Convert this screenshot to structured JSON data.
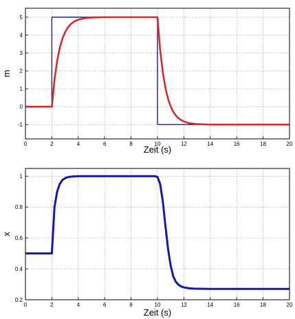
{
  "chart_data": [
    {
      "type": "line",
      "xlabel": "Zeit (s)",
      "ylabel": "m",
      "xlim": [
        0,
        20
      ],
      "ylim": [
        -1.8,
        5.5
      ],
      "xticks": [
        "0",
        "2",
        "4",
        "6",
        "8",
        "10",
        "12",
        "14",
        "16",
        "18",
        "20"
      ],
      "yticks": [
        "-1",
        "0",
        "1",
        "2",
        "3",
        "4",
        "5"
      ],
      "grid": true,
      "series": [
        {
          "color": "#1a1aa6",
          "x": [
            0,
            2,
            2,
            10,
            10,
            20
          ],
          "y": [
            0,
            0,
            5,
            5,
            -1,
            -1
          ]
        },
        {
          "color": "#d42a2a",
          "x": [
            0,
            2,
            2.2,
            2.4,
            2.6,
            2.8,
            3,
            3.2,
            3.4,
            3.6,
            3.8,
            4,
            4.4,
            4.8,
            5.2,
            6,
            7,
            8,
            9,
            10,
            10.2,
            10.4,
            10.6,
            10.8,
            11,
            11.2,
            11.4,
            11.6,
            11.8,
            12,
            12.4,
            12.8,
            13.2,
            14,
            16,
            18,
            20
          ],
          "y": [
            0,
            0,
            1.5,
            2.55,
            3.29,
            3.8,
            4.16,
            4.41,
            4.59,
            4.71,
            4.8,
            4.86,
            4.93,
            4.97,
            4.99,
            5,
            5,
            5,
            5,
            5,
            3.2,
            1.94,
            1.06,
            0.44,
            0.01,
            -0.29,
            -0.5,
            -0.65,
            -0.75,
            -0.83,
            -0.92,
            -0.96,
            -0.98,
            -1,
            -1,
            -1,
            -1
          ]
        }
      ]
    },
    {
      "type": "line",
      "xlabel": "Zeit (s)",
      "ylabel": "x",
      "xlim": [
        0,
        20
      ],
      "ylim": [
        0.2,
        1.05
      ],
      "xticks": [
        "0",
        "2",
        "4",
        "6",
        "8",
        "10",
        "12",
        "14",
        "16",
        "18",
        "20"
      ],
      "yticks": [
        "0.2",
        "0.4",
        "0.6",
        "0.8",
        "1"
      ],
      "grid": true,
      "series": [
        {
          "color": "#1515b8",
          "x": [
            0,
            2,
            2.2,
            2.4,
            2.6,
            2.8,
            3,
            3.2,
            3.4,
            3.6,
            3.8,
            4,
            5,
            6,
            7,
            8,
            9,
            9.8,
            10,
            10.2,
            10.4,
            10.6,
            10.8,
            11,
            11.2,
            11.4,
            11.6,
            11.8,
            12,
            12.4,
            12.8,
            13.2,
            14,
            16,
            18,
            20
          ],
          "y": [
            0.5,
            0.5,
            0.8,
            0.9,
            0.95,
            0.975,
            0.987,
            0.993,
            0.996,
            0.998,
            0.999,
            1,
            1,
            1,
            1,
            1,
            1,
            1,
            0.995,
            0.95,
            0.84,
            0.68,
            0.53,
            0.42,
            0.35,
            0.315,
            0.297,
            0.286,
            0.28,
            0.274,
            0.272,
            0.271,
            0.27,
            0.27,
            0.27,
            0.27
          ]
        }
      ]
    }
  ]
}
